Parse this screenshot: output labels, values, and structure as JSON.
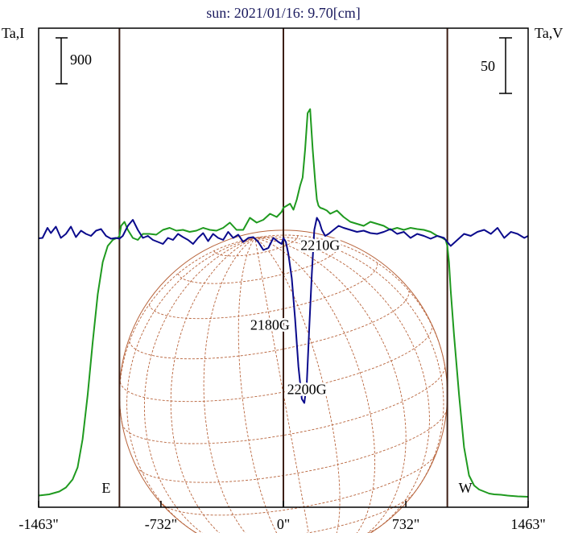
{
  "chart_data": {
    "type": "line",
    "title": "sun: 2021/01/16: 9.70[cm]",
    "left_axis_label": "Ta,I",
    "right_axis_label": "Ta,V",
    "scale_bar_left": "900",
    "scale_bar_right": "50",
    "x_ticks": [
      {
        "value": -1463,
        "label": "-1463\""
      },
      {
        "value": -732,
        "label": "-732\""
      },
      {
        "value": 0,
        "label": "0\""
      },
      {
        "value": 732,
        "label": "732\""
      },
      {
        "value": 1463,
        "label": "1463\""
      }
    ],
    "xlim": [
      -1463,
      1463
    ],
    "limb_markers": [
      {
        "x": -980,
        "label": "E"
      },
      {
        "x": 0,
        "label": ""
      },
      {
        "x": 980,
        "label": "W"
      }
    ],
    "annotations": [
      {
        "text": "2210G",
        "x": 220,
        "y": 270
      },
      {
        "text": "2180G",
        "x": -80,
        "y": 72
      },
      {
        "text": "2200G",
        "x": 140,
        "y": -88
      }
    ],
    "solar_disk_radius": 980,
    "colors": {
      "intensity": "#1f9a1f",
      "polarization": "#0a0a8c",
      "grid": "#b8643c",
      "frame": "#000000",
      "limb_lines": "#3c1e14",
      "title": "#1a1a5e"
    },
    "series": [
      {
        "name": "Ta,I",
        "color": "#1f9a1f",
        "x": [
          -1463,
          -1400,
          -1340,
          -1300,
          -1260,
          -1230,
          -1200,
          -1170,
          -1140,
          -1110,
          -1080,
          -1050,
          -1020,
          -1000,
          -990,
          -980,
          -970,
          -950,
          -930,
          -900,
          -870,
          -840,
          -800,
          -760,
          -720,
          -680,
          -640,
          -600,
          -560,
          -520,
          -480,
          -440,
          -400,
          -360,
          -320,
          -280,
          -240,
          -200,
          -160,
          -120,
          -80,
          -40,
          -10,
          0,
          20,
          40,
          60,
          80,
          100,
          115,
          130,
          145,
          160,
          175,
          190,
          200,
          210,
          220,
          240,
          260,
          280,
          320,
          360,
          400,
          440,
          480,
          520,
          560,
          600,
          640,
          680,
          720,
          760,
          800,
          840,
          880,
          920,
          950,
          970,
          980,
          990,
          1000,
          1020,
          1050,
          1080,
          1110,
          1140,
          1170,
          1200,
          1230,
          1260,
          1300,
          1340,
          1400,
          1463
        ],
        "y": [
          -340,
          -337,
          -330,
          -320,
          -300,
          -270,
          -200,
          -90,
          40,
          160,
          240,
          280,
          295,
          299,
          300,
          305,
          330,
          340,
          320,
          300,
          295,
          310,
          310,
          308,
          320,
          325,
          318,
          320,
          315,
          318,
          325,
          320,
          318,
          325,
          338,
          320,
          320,
          350,
          338,
          345,
          360,
          352,
          365,
          375,
          380,
          385,
          370,
          395,
          430,
          450,
          520,
          610,
          620,
          520,
          440,
          395,
          380,
          375,
          372,
          368,
          360,
          368,
          352,
          340,
          335,
          330,
          340,
          335,
          330,
          320,
          325,
          320,
          325,
          322,
          320,
          315,
          305,
          300,
          295,
          280,
          240,
          170,
          60,
          -90,
          -220,
          -290,
          -315,
          -325,
          -330,
          -335,
          -337,
          -338,
          -340,
          -342,
          -343
        ]
      },
      {
        "name": "Ta,V",
        "color": "#0a0a8c",
        "x": [
          -1463,
          -1440,
          -1410,
          -1390,
          -1360,
          -1330,
          -1300,
          -1270,
          -1240,
          -1210,
          -1180,
          -1150,
          -1120,
          -1090,
          -1060,
          -1030,
          -1000,
          -980,
          -960,
          -930,
          -900,
          -870,
          -840,
          -810,
          -780,
          -750,
          -720,
          -690,
          -660,
          -630,
          -600,
          -570,
          -540,
          -510,
          -480,
          -450,
          -420,
          -390,
          -360,
          -330,
          -300,
          -270,
          -240,
          -210,
          -180,
          -150,
          -120,
          -90,
          -60,
          -30,
          -10,
          0,
          15,
          30,
          50,
          70,
          90,
          110,
          125,
          140,
          155,
          170,
          185,
          200,
          215,
          230,
          250,
          270,
          300,
          330,
          360,
          400,
          440,
          480,
          520,
          560,
          600,
          640,
          680,
          720,
          760,
          800,
          840,
          880,
          920,
          960,
          980,
          1000,
          1040,
          1080,
          1120,
          1160,
          1200,
          1240,
          1280,
          1320,
          1360,
          1400,
          1440,
          1463
        ],
        "y": [
          299,
          300,
          325,
          312,
          328,
          300,
          310,
          328,
          302,
          318,
          310,
          305,
          318,
          322,
          305,
          298,
          300,
          298,
          305,
          330,
          345,
          320,
          300,
          305,
          295,
          290,
          285,
          300,
          295,
          310,
          302,
          295,
          285,
          300,
          312,
          292,
          310,
          300,
          295,
          315,
          300,
          308,
          290,
          300,
          302,
          290,
          270,
          275,
          300,
          290,
          285,
          300,
          290,
          260,
          200,
          100,
          -20,
          -100,
          -110,
          -60,
          80,
          210,
          320,
          350,
          340,
          320,
          305,
          310,
          320,
          330,
          325,
          320,
          315,
          318,
          312,
          310,
          315,
          322,
          310,
          315,
          300,
          310,
          305,
          298,
          305,
          300,
          290,
          280,
          295,
          310,
          305,
          315,
          320,
          310,
          325,
          300,
          315,
          310,
          300,
          305
        ]
      }
    ]
  }
}
